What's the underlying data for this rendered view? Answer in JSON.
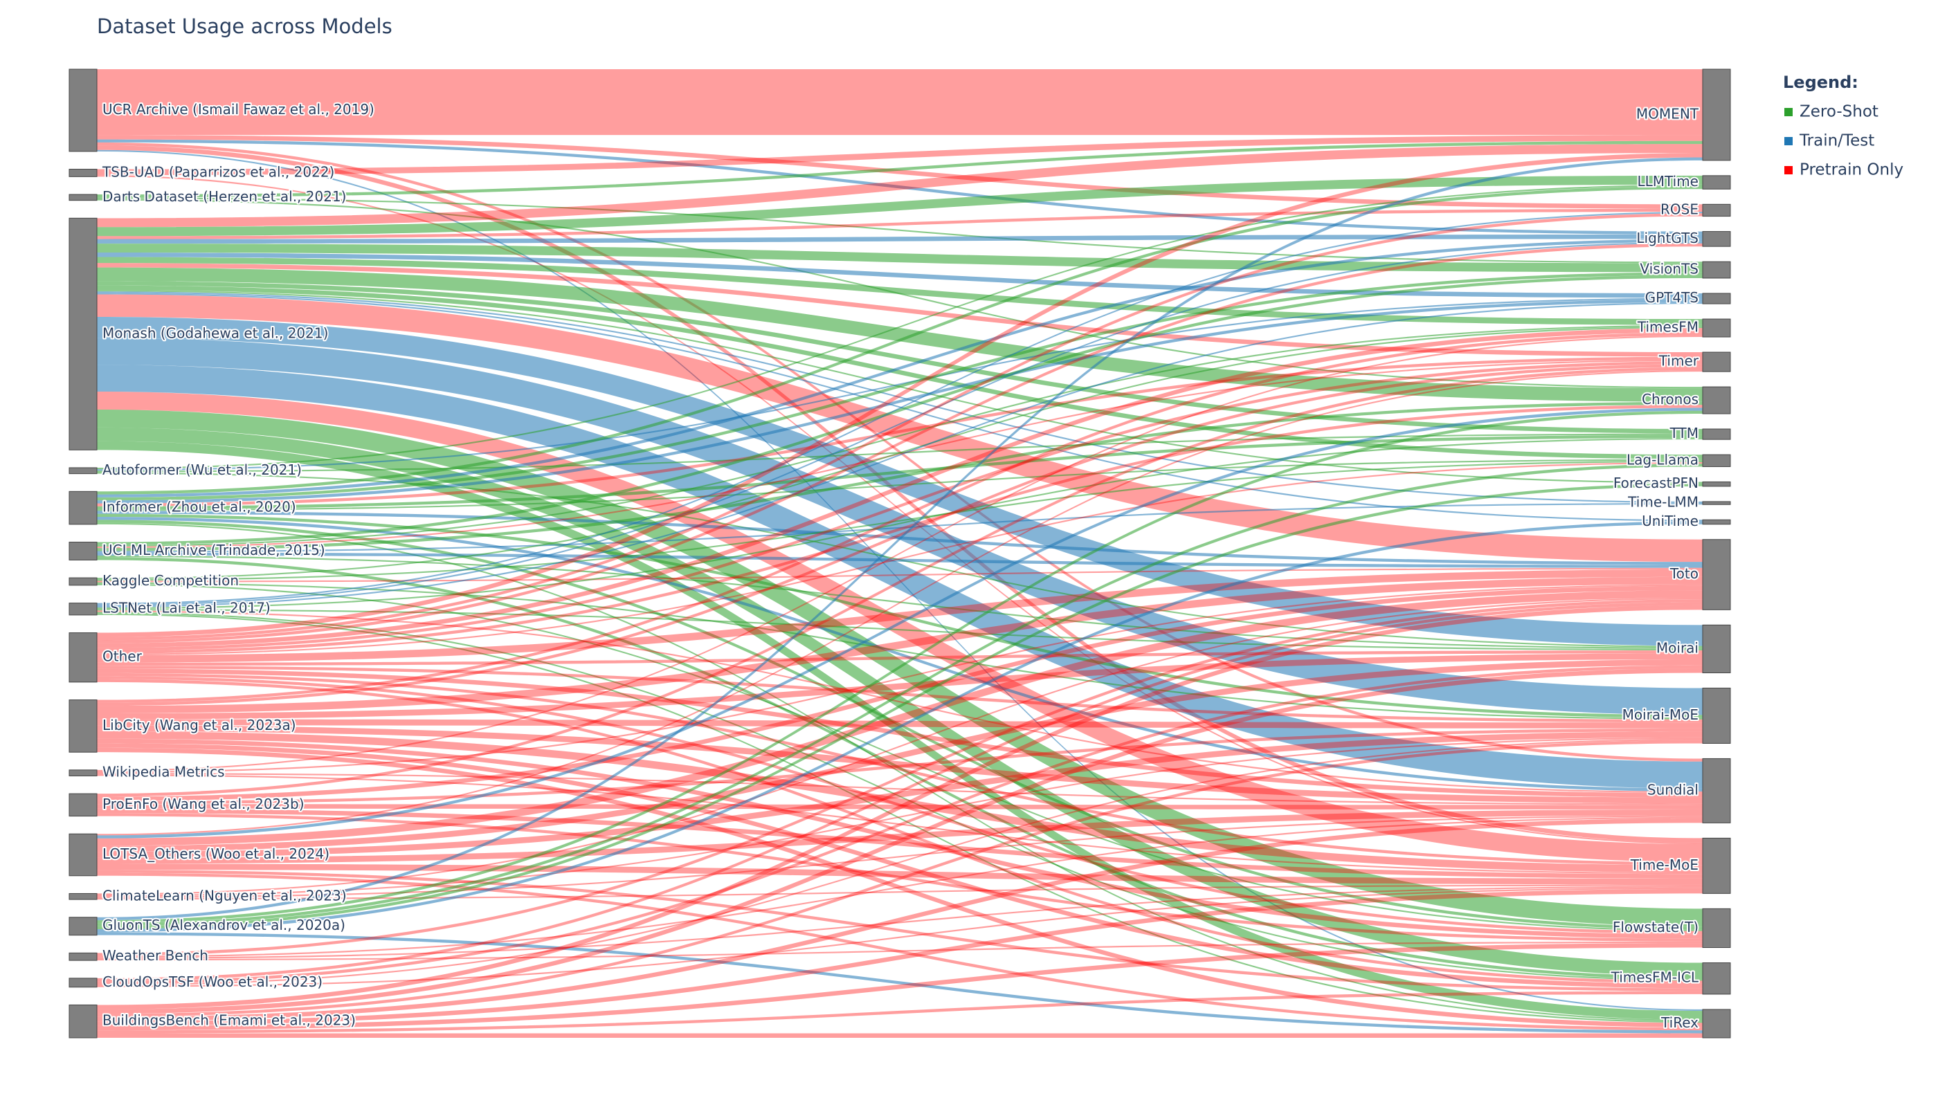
{
  "chart_data": {
    "type": "sankey",
    "title": "Dataset Usage across Models",
    "left_nodes": [
      "UCR Archive (Ismail Fawaz et al., 2019)",
      "TSB-UAD (Paparrizos et al., 2022)",
      "Darts Dataset (Herzen et al., 2021)",
      "Monash (Godahewa et al., 2021)",
      "Autoformer (Wu et al., 2021)",
      "Informer (Zhou et al., 2020)",
      "UCI ML Archive (Trindade, 2015)",
      "Kaggle Competition",
      "LSTNet (Lai et al., 2017)",
      "Other",
      "LibCity (Wang et al., 2023a)",
      "Wikipedia Metrics",
      "ProEnFo (Wang et al., 2023b)",
      "LOTSA_Others (Woo et al., 2024)",
      "ClimateLearn (Nguyen et al., 2023)",
      "GluonTS (Alexandrov et al., 2020a)",
      "Weather Bench",
      "CloudOpsTSF (Woo et al., 2023)",
      "BuildingsBench (Emami et al., 2023)"
    ],
    "right_nodes": [
      "MOMENT",
      "LLMTime",
      "ROSE",
      "LightGTS",
      "VisionTS",
      "GPT4TS",
      "TimesFM",
      "Timer",
      "Chronos",
      "TTM",
      "Lag-Llama",
      "ForecastPFN",
      "Time-LMM",
      "UniTime",
      "Toto",
      "Moirai",
      "Moirai-MoE",
      "Sundial",
      "Time-MoE",
      "Flowstate(T)",
      "TimesFM-ICL",
      "TiRex"
    ],
    "legend": {
      "title": "Legend:",
      "items": [
        {
          "name": "Zero-Shot",
          "color": "#2ca02c"
        },
        {
          "name": "Train/Test",
          "color": "#1f77b4"
        },
        {
          "name": "Pretrain Only",
          "color": "#ff0000"
        }
      ]
    },
    "links": [
      {
        "source": 0,
        "target": 0,
        "value": 44,
        "kind": 2
      },
      {
        "source": 0,
        "target": 2,
        "value": 3,
        "kind": 2
      },
      {
        "source": 0,
        "target": 3,
        "value": 2,
        "kind": 1
      },
      {
        "source": 0,
        "target": 18,
        "value": 3,
        "kind": 2
      },
      {
        "source": 0,
        "target": 21,
        "value": 1,
        "kind": 1
      },
      {
        "source": 0,
        "target": 17,
        "value": 2,
        "kind": 2
      },
      {
        "source": 1,
        "target": 0,
        "value": 4,
        "kind": 2
      },
      {
        "source": 1,
        "target": 18,
        "value": 1,
        "kind": 2
      },
      {
        "source": 2,
        "target": 0,
        "value": 2,
        "kind": 0
      },
      {
        "source": 2,
        "target": 4,
        "value": 1,
        "kind": 0
      },
      {
        "source": 2,
        "target": 8,
        "value": 1,
        "kind": 0
      },
      {
        "source": 3,
        "target": 0,
        "value": 6,
        "kind": 2
      },
      {
        "source": 3,
        "target": 1,
        "value": 6,
        "kind": 0
      },
      {
        "source": 3,
        "target": 2,
        "value": 2,
        "kind": 2
      },
      {
        "source": 3,
        "target": 3,
        "value": 3,
        "kind": 1
      },
      {
        "source": 3,
        "target": 4,
        "value": 6,
        "kind": 0
      },
      {
        "source": 3,
        "target": 5,
        "value": 3,
        "kind": 1
      },
      {
        "source": 3,
        "target": 6,
        "value": 4,
        "kind": 0
      },
      {
        "source": 3,
        "target": 7,
        "value": 3,
        "kind": 2
      },
      {
        "source": 3,
        "target": 8,
        "value": 9,
        "kind": 0
      },
      {
        "source": 3,
        "target": 9,
        "value": 3,
        "kind": 0
      },
      {
        "source": 3,
        "target": 10,
        "value": 3,
        "kind": 0
      },
      {
        "source": 3,
        "target": 11,
        "value": 1,
        "kind": 0
      },
      {
        "source": 3,
        "target": 12,
        "value": 1,
        "kind": 1
      },
      {
        "source": 3,
        "target": 13,
        "value": 1,
        "kind": 1
      },
      {
        "source": 3,
        "target": 14,
        "value": 15,
        "kind": 2
      },
      {
        "source": 3,
        "target": 15,
        "value": 14,
        "kind": 1
      },
      {
        "source": 3,
        "target": 16,
        "value": 18,
        "kind": 1
      },
      {
        "source": 3,
        "target": 17,
        "value": 18,
        "kind": 1
      },
      {
        "source": 3,
        "target": 18,
        "value": 12,
        "kind": 2
      },
      {
        "source": 3,
        "target": 19,
        "value": 12,
        "kind": 0
      },
      {
        "source": 3,
        "target": 20,
        "value": 9,
        "kind": 0
      },
      {
        "source": 3,
        "target": 21,
        "value": 6,
        "kind": 0
      },
      {
        "source": 4,
        "target": 1,
        "value": 1,
        "kind": 0
      },
      {
        "source": 4,
        "target": 5,
        "value": 1,
        "kind": 1
      },
      {
        "source": 4,
        "target": 9,
        "value": 1,
        "kind": 0
      },
      {
        "source": 4,
        "target": 15,
        "value": 1,
        "kind": 0
      },
      {
        "source": 5,
        "target": 1,
        "value": 2,
        "kind": 0
      },
      {
        "source": 5,
        "target": 3,
        "value": 2,
        "kind": 1
      },
      {
        "source": 5,
        "target": 4,
        "value": 2,
        "kind": 0
      },
      {
        "source": 5,
        "target": 5,
        "value": 2,
        "kind": 1
      },
      {
        "source": 5,
        "target": 7,
        "value": 2,
        "kind": 2
      },
      {
        "source": 5,
        "target": 9,
        "value": 2,
        "kind": 0
      },
      {
        "source": 5,
        "target": 10,
        "value": 1,
        "kind": 0
      },
      {
        "source": 5,
        "target": 14,
        "value": 2,
        "kind": 1
      },
      {
        "source": 5,
        "target": 16,
        "value": 2,
        "kind": 0
      },
      {
        "source": 5,
        "target": 17,
        "value": 2,
        "kind": 1
      },
      {
        "source": 5,
        "target": 19,
        "value": 2,
        "kind": 0
      },
      {
        "source": 5,
        "target": 21,
        "value": 1,
        "kind": 0
      },
      {
        "source": 6,
        "target": 4,
        "value": 2,
        "kind": 0
      },
      {
        "source": 6,
        "target": 6,
        "value": 1,
        "kind": 0
      },
      {
        "source": 6,
        "target": 7,
        "value": 1,
        "kind": 2
      },
      {
        "source": 6,
        "target": 8,
        "value": 2,
        "kind": 0
      },
      {
        "source": 6,
        "target": 12,
        "value": 1,
        "kind": 1
      },
      {
        "source": 6,
        "target": 14,
        "value": 2,
        "kind": 1
      },
      {
        "source": 6,
        "target": 15,
        "value": 1,
        "kind": 0
      },
      {
        "source": 6,
        "target": 20,
        "value": 2,
        "kind": 0
      },
      {
        "source": 7,
        "target": 6,
        "value": 1,
        "kind": 0
      },
      {
        "source": 7,
        "target": 10,
        "value": 1,
        "kind": 0
      },
      {
        "source": 7,
        "target": 16,
        "value": 1,
        "kind": 0
      },
      {
        "source": 7,
        "target": 19,
        "value": 1,
        "kind": 0
      },
      {
        "source": 7,
        "target": 14,
        "value": 1,
        "kind": 2
      },
      {
        "source": 8,
        "target": 2,
        "value": 1,
        "kind": 1
      },
      {
        "source": 8,
        "target": 3,
        "value": 1,
        "kind": 1
      },
      {
        "source": 8,
        "target": 5,
        "value": 1,
        "kind": 1
      },
      {
        "source": 8,
        "target": 9,
        "value": 1,
        "kind": 0
      },
      {
        "source": 8,
        "target": 15,
        "value": 1,
        "kind": 0
      },
      {
        "source": 8,
        "target": 17,
        "value": 1,
        "kind": 2
      },
      {
        "source": 8,
        "target": 20,
        "value": 1,
        "kind": 0
      },
      {
        "source": 8,
        "target": 21,
        "value": 1,
        "kind": 0
      },
      {
        "source": 9,
        "target": 0,
        "value": 3,
        "kind": 2
      },
      {
        "source": 9,
        "target": 2,
        "value": 2,
        "kind": 2
      },
      {
        "source": 9,
        "target": 3,
        "value": 2,
        "kind": 2
      },
      {
        "source": 9,
        "target": 6,
        "value": 3,
        "kind": 2
      },
      {
        "source": 9,
        "target": 7,
        "value": 2,
        "kind": 2
      },
      {
        "source": 9,
        "target": 8,
        "value": 2,
        "kind": 2
      },
      {
        "source": 9,
        "target": 10,
        "value": 1,
        "kind": 2
      },
      {
        "source": 9,
        "target": 14,
        "value": 5,
        "kind": 2
      },
      {
        "source": 9,
        "target": 15,
        "value": 2,
        "kind": 2
      },
      {
        "source": 9,
        "target": 16,
        "value": 2,
        "kind": 2
      },
      {
        "source": 9,
        "target": 17,
        "value": 3,
        "kind": 2
      },
      {
        "source": 9,
        "target": 18,
        "value": 2,
        "kind": 2
      },
      {
        "source": 9,
        "target": 19,
        "value": 2,
        "kind": 2
      },
      {
        "source": 9,
        "target": 20,
        "value": 2,
        "kind": 2
      },
      {
        "source": 10,
        "target": 14,
        "value": 5,
        "kind": 2
      },
      {
        "source": 10,
        "target": 15,
        "value": 4,
        "kind": 2
      },
      {
        "source": 10,
        "target": 16,
        "value": 4,
        "kind": 2
      },
      {
        "source": 10,
        "target": 17,
        "value": 4,
        "kind": 2
      },
      {
        "source": 10,
        "target": 18,
        "value": 5,
        "kind": 2
      },
      {
        "source": 10,
        "target": 19,
        "value": 3,
        "kind": 2
      },
      {
        "source": 10,
        "target": 20,
        "value": 3,
        "kind": 2
      },
      {
        "source": 10,
        "target": 21,
        "value": 3,
        "kind": 2
      },
      {
        "source": 10,
        "target": 6,
        "value": 2,
        "kind": 2
      },
      {
        "source": 10,
        "target": 7,
        "value": 2,
        "kind": 2
      },
      {
        "source": 11,
        "target": 14,
        "value": 1,
        "kind": 2
      },
      {
        "source": 11,
        "target": 17,
        "value": 1,
        "kind": 2
      },
      {
        "source": 11,
        "target": 18,
        "value": 1,
        "kind": 2
      },
      {
        "source": 11,
        "target": 6,
        "value": 1,
        "kind": 2
      },
      {
        "source": 12,
        "target": 14,
        "value": 3,
        "kind": 2
      },
      {
        "source": 12,
        "target": 16,
        "value": 2,
        "kind": 2
      },
      {
        "source": 12,
        "target": 17,
        "value": 3,
        "kind": 2
      },
      {
        "source": 12,
        "target": 18,
        "value": 3,
        "kind": 2
      },
      {
        "source": 12,
        "target": 19,
        "value": 2,
        "kind": 2
      },
      {
        "source": 12,
        "target": 7,
        "value": 2,
        "kind": 2
      },
      {
        "source": 13,
        "target": 14,
        "value": 5,
        "kind": 2
      },
      {
        "source": 13,
        "target": 15,
        "value": 4,
        "kind": 2
      },
      {
        "source": 13,
        "target": 16,
        "value": 4,
        "kind": 2
      },
      {
        "source": 13,
        "target": 17,
        "value": 4,
        "kind": 2
      },
      {
        "source": 13,
        "target": 18,
        "value": 4,
        "kind": 2
      },
      {
        "source": 13,
        "target": 20,
        "value": 2,
        "kind": 2
      },
      {
        "source": 13,
        "target": 21,
        "value": 2,
        "kind": 2
      },
      {
        "source": 13,
        "target": 7,
        "value": 1,
        "kind": 2
      },
      {
        "source": 13,
        "target": 8,
        "value": 2,
        "kind": 1
      },
      {
        "source": 14,
        "target": 14,
        "value": 1,
        "kind": 2
      },
      {
        "source": 14,
        "target": 16,
        "value": 1,
        "kind": 2
      },
      {
        "source": 14,
        "target": 17,
        "value": 1,
        "kind": 2
      },
      {
        "source": 14,
        "target": 18,
        "value": 1,
        "kind": 2
      },
      {
        "source": 15,
        "target": 0,
        "value": 2,
        "kind": 1
      },
      {
        "source": 15,
        "target": 8,
        "value": 2,
        "kind": 0
      },
      {
        "source": 15,
        "target": 10,
        "value": 2,
        "kind": 0
      },
      {
        "source": 15,
        "target": 11,
        "value": 2,
        "kind": 0
      },
      {
        "source": 15,
        "target": 13,
        "value": 2,
        "kind": 1
      },
      {
        "source": 15,
        "target": 21,
        "value": 2,
        "kind": 1
      },
      {
        "source": 16,
        "target": 14,
        "value": 2,
        "kind": 2
      },
      {
        "source": 16,
        "target": 17,
        "value": 1,
        "kind": 2
      },
      {
        "source": 16,
        "target": 18,
        "value": 1,
        "kind": 2
      },
      {
        "source": 16,
        "target": 19,
        "value": 1,
        "kind": 2
      },
      {
        "source": 17,
        "target": 14,
        "value": 2,
        "kind": 2
      },
      {
        "source": 17,
        "target": 15,
        "value": 2,
        "kind": 2
      },
      {
        "source": 17,
        "target": 16,
        "value": 1,
        "kind": 2
      },
      {
        "source": 17,
        "target": 18,
        "value": 1,
        "kind": 2
      },
      {
        "source": 18,
        "target": 14,
        "value": 3,
        "kind": 2
      },
      {
        "source": 18,
        "target": 15,
        "value": 3,
        "kind": 2
      },
      {
        "source": 18,
        "target": 16,
        "value": 2,
        "kind": 2
      },
      {
        "source": 18,
        "target": 17,
        "value": 3,
        "kind": 2
      },
      {
        "source": 18,
        "target": 18,
        "value": 3,
        "kind": 2
      },
      {
        "source": 18,
        "target": 19,
        "value": 3,
        "kind": 2
      },
      {
        "source": 18,
        "target": 20,
        "value": 2,
        "kind": 2
      },
      {
        "source": 18,
        "target": 21,
        "value": 3,
        "kind": 2
      }
    ]
  }
}
